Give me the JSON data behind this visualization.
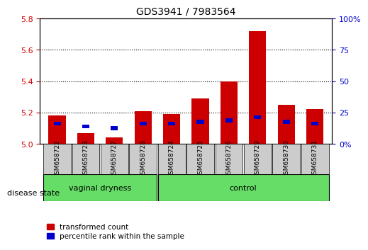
{
  "title": "GDS3941 / 7983564",
  "samples": [
    "GSM658722",
    "GSM658723",
    "GSM658727",
    "GSM658728",
    "GSM658724",
    "GSM658725",
    "GSM658726",
    "GSM658729",
    "GSM658730",
    "GSM658731"
  ],
  "red_values": [
    5.18,
    5.07,
    5.04,
    5.21,
    5.19,
    5.29,
    5.4,
    5.72,
    5.25,
    5.22
  ],
  "blue_values": [
    5.13,
    5.11,
    5.1,
    5.13,
    5.13,
    5.14,
    5.15,
    5.17,
    5.14,
    5.13
  ],
  "y_min": 5.0,
  "y_max": 5.8,
  "y_ticks": [
    5.0,
    5.2,
    5.4,
    5.6,
    5.8
  ],
  "right_y_ticks": [
    0,
    25,
    50,
    75,
    100
  ],
  "right_y_tick_labels": [
    "0%",
    "25",
    "50",
    "75",
    "100%"
  ],
  "group1_label": "vaginal dryness",
  "group2_label": "control",
  "group1_count": 4,
  "group2_count": 6,
  "disease_state_label": "disease state",
  "legend_red": "transformed count",
  "legend_blue": "percentile rank within the sample",
  "bar_width": 0.6,
  "red_color": "#cc0000",
  "blue_color": "#0000cc",
  "group_bg_color": "#66dd66",
  "sample_bg_color": "#cccccc",
  "axis_color_left": "#cc0000",
  "axis_color_right": "#0000cc"
}
